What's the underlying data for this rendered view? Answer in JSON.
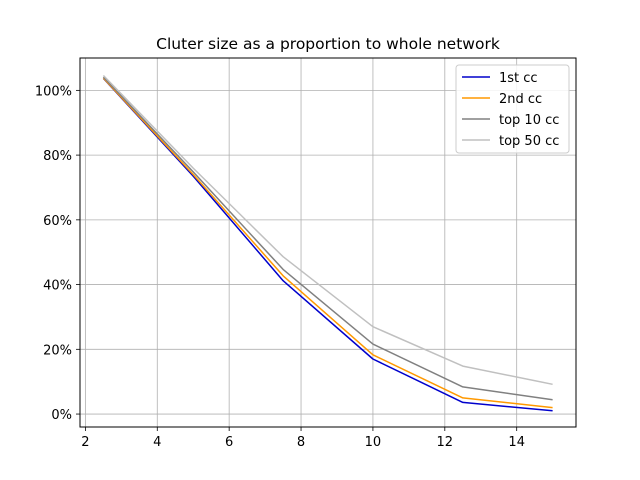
{
  "chart_data": {
    "type": "line",
    "title": "Cluter size as a proportion to whole network",
    "xlabel": "",
    "ylabel": "",
    "xlim": [
      1.85,
      15.65
    ],
    "ylim": [
      -4,
      110
    ],
    "xticks": [
      2,
      4,
      6,
      8,
      10,
      12,
      14
    ],
    "xtick_labels": [
      "2",
      "4",
      "6",
      "8",
      "10",
      "12",
      "14"
    ],
    "yticks": [
      0,
      20,
      40,
      60,
      80,
      100
    ],
    "ytick_labels": [
      "0%",
      "20%",
      "40%",
      "60%",
      "80%",
      "100%"
    ],
    "grid": true,
    "legend_position": "top-right",
    "x": [
      2.5,
      5,
      7.5,
      10,
      12.5,
      15
    ],
    "series": [
      {
        "name": "1st cc",
        "color": "#0000cc",
        "values": [
          103.7,
          73.5,
          41.2,
          17.0,
          3.6,
          1.0
        ]
      },
      {
        "name": "2nd cc",
        "color": "#ff9900",
        "values": [
          103.8,
          74.0,
          42.7,
          18.3,
          5.0,
          2.0
        ]
      },
      {
        "name": "top 10 cc",
        "color": "#808080",
        "values": [
          104.1,
          74.8,
          44.7,
          21.6,
          8.4,
          4.4
        ]
      },
      {
        "name": "top 50 cc",
        "color": "#c0c0c0",
        "values": [
          104.6,
          76.0,
          48.6,
          27.0,
          14.8,
          9.2
        ]
      }
    ]
  }
}
